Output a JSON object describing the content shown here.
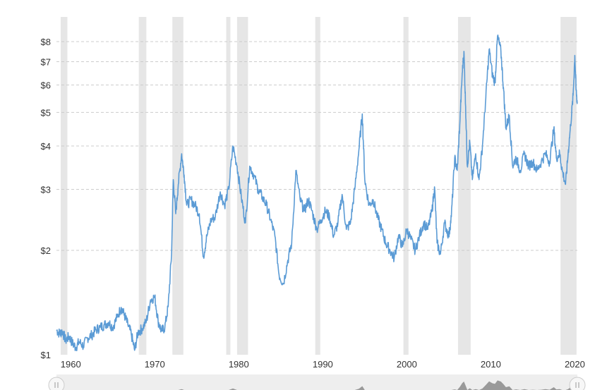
{
  "chart_data": {
    "type": "line",
    "title": "",
    "xlabel": "",
    "ylabel": "",
    "y_scale": "log",
    "ylim": [
      1,
      8.6
    ],
    "xlim": [
      1958.3,
      2020.3
    ],
    "y_ticks": [
      {
        "value": 1,
        "label": "$1"
      },
      {
        "value": 2,
        "label": "$2"
      },
      {
        "value": 3,
        "label": "$3"
      },
      {
        "value": 4,
        "label": "$4"
      },
      {
        "value": 5,
        "label": "$5"
      },
      {
        "value": 6,
        "label": "$6"
      },
      {
        "value": 7,
        "label": "$7"
      },
      {
        "value": 8,
        "label": "$8"
      }
    ],
    "x_ticks": [
      {
        "value": 1960,
        "label": "1960"
      },
      {
        "value": 1970,
        "label": "1970"
      },
      {
        "value": 1980,
        "label": "1980"
      },
      {
        "value": 1990,
        "label": "1990"
      },
      {
        "value": 2000,
        "label": "2000"
      },
      {
        "value": 2010,
        "label": "2010"
      },
      {
        "value": 2020,
        "label": "2020"
      }
    ],
    "grid": "horizontal-dashed",
    "legend": "none",
    "line_color": "#5b9bd5",
    "recession_color": "#e6e6e6",
    "recessions": [
      [
        1958.8,
        1959.6
      ],
      [
        1968.1,
        1969.0
      ],
      [
        1972.1,
        1973.4
      ],
      [
        1978.5,
        1979.0
      ],
      [
        1979.8,
        1981.1
      ],
      [
        1989.1,
        1989.7
      ],
      [
        1999.6,
        2000.2
      ],
      [
        2006.1,
        2007.6
      ],
      [
        2018.3,
        2020.2
      ]
    ],
    "series": [
      {
        "points": [
          [
            1958.3,
            1.18
          ],
          [
            1958.7,
            1.15
          ],
          [
            1959.0,
            1.17
          ],
          [
            1959.4,
            1.1
          ],
          [
            1959.8,
            1.13
          ],
          [
            1960.2,
            1.08
          ],
          [
            1960.6,
            1.05
          ],
          [
            1961.0,
            1.09
          ],
          [
            1961.5,
            1.06
          ],
          [
            1962.0,
            1.12
          ],
          [
            1962.5,
            1.14
          ],
          [
            1963.0,
            1.18
          ],
          [
            1963.5,
            1.2
          ],
          [
            1964.0,
            1.22
          ],
          [
            1964.5,
            1.24
          ],
          [
            1965.0,
            1.2
          ],
          [
            1965.5,
            1.28
          ],
          [
            1966.0,
            1.37
          ],
          [
            1966.4,
            1.3
          ],
          [
            1966.8,
            1.22
          ],
          [
            1967.2,
            1.15
          ],
          [
            1967.6,
            1.03
          ],
          [
            1968.0,
            1.16
          ],
          [
            1968.5,
            1.19
          ],
          [
            1969.0,
            1.25
          ],
          [
            1969.5,
            1.44
          ],
          [
            1970.0,
            1.47
          ],
          [
            1970.4,
            1.25
          ],
          [
            1970.8,
            1.17
          ],
          [
            1971.2,
            1.2
          ],
          [
            1971.6,
            1.38
          ],
          [
            1972.0,
            1.95
          ],
          [
            1972.2,
            3.2
          ],
          [
            1972.5,
            2.55
          ],
          [
            1972.8,
            3.1
          ],
          [
            1973.2,
            3.8
          ],
          [
            1973.5,
            3.3
          ],
          [
            1973.8,
            2.7
          ],
          [
            1974.3,
            2.8
          ],
          [
            1974.8,
            2.7
          ],
          [
            1975.3,
            2.55
          ],
          [
            1975.8,
            1.92
          ],
          [
            1976.2,
            2.2
          ],
          [
            1976.7,
            2.45
          ],
          [
            1977.2,
            2.5
          ],
          [
            1977.8,
            2.95
          ],
          [
            1978.3,
            2.7
          ],
          [
            1978.8,
            3.0
          ],
          [
            1979.3,
            4.0
          ],
          [
            1979.8,
            3.5
          ],
          [
            1980.3,
            2.85
          ],
          [
            1980.8,
            2.4
          ],
          [
            1981.3,
            3.5
          ],
          [
            1981.8,
            3.3
          ],
          [
            1982.3,
            3.0
          ],
          [
            1982.8,
            2.85
          ],
          [
            1983.3,
            2.7
          ],
          [
            1983.8,
            2.45
          ],
          [
            1984.3,
            2.2
          ],
          [
            1984.8,
            1.7
          ],
          [
            1985.3,
            1.6
          ],
          [
            1985.8,
            1.85
          ],
          [
            1986.3,
            2.1
          ],
          [
            1986.8,
            3.4
          ],
          [
            1987.3,
            2.8
          ],
          [
            1987.8,
            2.6
          ],
          [
            1988.3,
            2.8
          ],
          [
            1988.8,
            2.55
          ],
          [
            1989.3,
            2.3
          ],
          [
            1989.8,
            2.45
          ],
          [
            1990.3,
            2.6
          ],
          [
            1990.8,
            2.5
          ],
          [
            1991.3,
            2.2
          ],
          [
            1991.8,
            2.4
          ],
          [
            1992.3,
            2.9
          ],
          [
            1992.8,
            2.3
          ],
          [
            1993.3,
            2.4
          ],
          [
            1993.8,
            3.0
          ],
          [
            1994.3,
            3.9
          ],
          [
            1994.7,
            4.95
          ],
          [
            1995.0,
            3.2
          ],
          [
            1995.5,
            2.7
          ],
          [
            1996.0,
            2.8
          ],
          [
            1996.5,
            2.5
          ],
          [
            1997.0,
            2.3
          ],
          [
            1997.5,
            2.1
          ],
          [
            1998.0,
            2.0
          ],
          [
            1998.5,
            1.9
          ],
          [
            1999.0,
            2.2
          ],
          [
            1999.5,
            2.05
          ],
          [
            2000.0,
            2.3
          ],
          [
            2000.5,
            2.15
          ],
          [
            2001.0,
            2.0
          ],
          [
            2001.5,
            2.2
          ],
          [
            2002.0,
            2.4
          ],
          [
            2002.5,
            2.3
          ],
          [
            2003.0,
            2.6
          ],
          [
            2003.3,
            3.05
          ],
          [
            2003.6,
            2.1
          ],
          [
            2004.0,
            1.95
          ],
          [
            2004.5,
            2.4
          ],
          [
            2005.0,
            2.2
          ],
          [
            2005.3,
            2.5
          ],
          [
            2005.7,
            3.7
          ],
          [
            2006.0,
            3.4
          ],
          [
            2006.3,
            4.6
          ],
          [
            2006.6,
            6.5
          ],
          [
            2006.8,
            7.5
          ],
          [
            2007.0,
            5.2
          ],
          [
            2007.2,
            3.5
          ],
          [
            2007.5,
            4.1
          ],
          [
            2007.8,
            3.2
          ],
          [
            2008.2,
            3.8
          ],
          [
            2008.6,
            3.2
          ],
          [
            2009.0,
            4.0
          ],
          [
            2009.4,
            5.5
          ],
          [
            2009.8,
            7.6
          ],
          [
            2010.2,
            6.4
          ],
          [
            2010.5,
            6.1
          ],
          [
            2010.8,
            8.3
          ],
          [
            2011.2,
            7.5
          ],
          [
            2011.5,
            5.9
          ],
          [
            2011.8,
            4.5
          ],
          [
            2012.2,
            4.9
          ],
          [
            2012.6,
            3.5
          ],
          [
            2013.0,
            3.7
          ],
          [
            2013.5,
            3.4
          ],
          [
            2014.0,
            3.8
          ],
          [
            2014.5,
            3.5
          ],
          [
            2015.0,
            3.6
          ],
          [
            2015.5,
            3.4
          ],
          [
            2016.0,
            3.6
          ],
          [
            2016.5,
            3.8
          ],
          [
            2017.0,
            3.6
          ],
          [
            2017.5,
            4.5
          ],
          [
            2017.8,
            3.7
          ],
          [
            2018.2,
            3.8
          ],
          [
            2018.5,
            3.4
          ],
          [
            2018.9,
            3.1
          ],
          [
            2019.2,
            3.8
          ],
          [
            2019.5,
            4.6
          ],
          [
            2019.8,
            5.6
          ],
          [
            2020.0,
            7.3
          ],
          [
            2020.15,
            5.8
          ],
          [
            2020.3,
            5.3
          ]
        ]
      }
    ]
  }
}
